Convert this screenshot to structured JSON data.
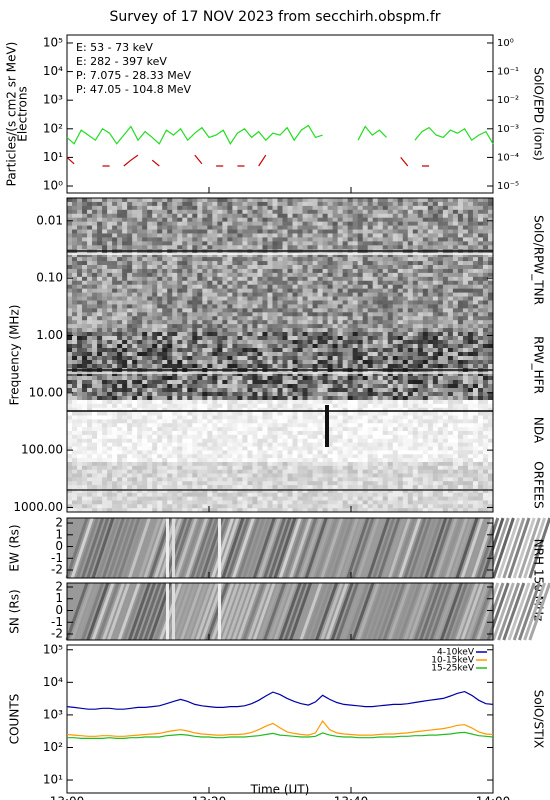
{
  "chart_data": [
    {
      "type": "line",
      "title": "Survey of 17 NOV 2023 from secchirh.obspm.fr",
      "ylabel": [
        "Particles/(s cm2 sr MeV)",
        "Electrons"
      ],
      "y2label": "SolO/EPD (ions)",
      "log_scale": true,
      "ylim": [
        0.57,
        190000
      ],
      "y2lim": [
        5.7e-06,
        1.9
      ],
      "yticks": [
        {
          "value": 1,
          "label": "10⁰"
        },
        {
          "value": 10,
          "label": "10¹"
        },
        {
          "value": 100,
          "label": "10²"
        },
        {
          "value": 1000,
          "label": "10³"
        },
        {
          "value": 10000,
          "label": "10⁴"
        },
        {
          "value": 100000,
          "label": "10⁵"
        }
      ],
      "y2ticks": [
        {
          "value": 1e-05,
          "label": "10⁻⁵"
        },
        {
          "value": 0.0001,
          "label": "10⁻⁴"
        },
        {
          "value": 0.001,
          "label": "10⁻³"
        },
        {
          "value": 0.01,
          "label": "10⁻²"
        },
        {
          "value": 0.1,
          "label": "10⁻¹"
        },
        {
          "value": 1,
          "label": "10⁰"
        }
      ],
      "xlim": [
        "13:00",
        "14:00"
      ],
      "x": [
        "13:00",
        "13:01",
        "13:02",
        "13:03",
        "13:04",
        "13:05",
        "13:06",
        "13:07",
        "13:08",
        "13:09",
        "13:10",
        "13:11",
        "13:12",
        "13:13",
        "13:14",
        "13:15",
        "13:16",
        "13:17",
        "13:18",
        "13:19",
        "13:20",
        "13:21",
        "13:22",
        "13:23",
        "13:24",
        "13:25",
        "13:26",
        "13:27",
        "13:28",
        "13:29",
        "13:30",
        "13:31",
        "13:32",
        "13:33",
        "13:34",
        "13:35",
        "13:36",
        "13:37",
        "13:38",
        "13:39",
        "13:40",
        "13:41",
        "13:42",
        "13:43",
        "13:44",
        "13:45",
        "13:46",
        "13:47",
        "13:48",
        "13:49",
        "13:50",
        "13:51",
        "13:52",
        "13:53",
        "13:54",
        "13:55",
        "13:56",
        "13:57",
        "13:58",
        "13:59",
        "14:00"
      ],
      "series": [
        {
          "name": "E: 53 - 73 keV",
          "color": "#22dd22",
          "values": [
            50,
            30,
            90,
            60,
            40,
            100,
            70,
            30,
            60,
            120,
            40,
            80,
            50,
            30,
            90,
            60,
            100,
            40,
            70,
            110,
            50,
            60,
            90,
            30,
            70,
            100,
            50,
            80,
            40,
            70,
            60,
            110,
            40,
            90,
            130,
            50,
            60,
            null,
            null,
            80,
            null,
            40,
            120,
            60,
            90,
            50,
            null,
            100,
            null,
            40,
            80,
            110,
            60,
            50,
            90,
            70,
            100,
            40,
            60,
            80,
            30
          ]
        },
        {
          "name": "E: 282 - 397 keV",
          "color": "#cc0000",
          "values": [
            10,
            6,
            null,
            null,
            null,
            5,
            5,
            null,
            5,
            8,
            12,
            null,
            8,
            5,
            null,
            null,
            null,
            null,
            12,
            6,
            null,
            5,
            5,
            null,
            5,
            5,
            null,
            5,
            12,
            null,
            null,
            null,
            null,
            null,
            null,
            null,
            null,
            null,
            null,
            null,
            null,
            null,
            null,
            null,
            null,
            null,
            null,
            10,
            5,
            null,
            5,
            5,
            null,
            null,
            null,
            null,
            null,
            null,
            null,
            null,
            null
          ]
        },
        {
          "name": "P: 7.075 - 28.33 MeV",
          "color": "#000000",
          "axis": "y2",
          "values": [
            null,
            null,
            null,
            null,
            null,
            null,
            null,
            null,
            null,
            null,
            null,
            null,
            null,
            null,
            null,
            null,
            null,
            null,
            null,
            null,
            null,
            null,
            null,
            null,
            null,
            null,
            null,
            null,
            null,
            null,
            null,
            null,
            null,
            null,
            null,
            null,
            null,
            null,
            null,
            null,
            null,
            null,
            null,
            null,
            null,
            null,
            null,
            null,
            null,
            null,
            null,
            null,
            null,
            null,
            null,
            null,
            null,
            null,
            null,
            null,
            null
          ]
        },
        {
          "name": "P: 47.05 - 104.8 MeV",
          "color": "#0000aa",
          "axis": "y2",
          "values": [
            null,
            null,
            null,
            null,
            null,
            null,
            null,
            null,
            null,
            null,
            null,
            null,
            null,
            null,
            null,
            null,
            null,
            null,
            null,
            null,
            null,
            null,
            null,
            null,
            null,
            null,
            null,
            null,
            null,
            null,
            null,
            null,
            null,
            null,
            null,
            null,
            null,
            null,
            null,
            null,
            null,
            null,
            null,
            null,
            null,
            null,
            null,
            null,
            null,
            null,
            null,
            null,
            null,
            null,
            null,
            null,
            null,
            null,
            null,
            null,
            null
          ]
        }
      ]
    },
    {
      "type": "spectrogram",
      "ylabel": "Frequency (MHz)",
      "log_scale": true,
      "reversed": true,
      "ylim": [
        0.004,
        1200
      ],
      "yticks": [
        0.01,
        {
          "value": 0.1,
          "label": "0.10"
        },
        {
          "value": 1,
          "label": "1.00"
        },
        {
          "value": 10,
          "label": "10.00"
        },
        {
          "value": 100,
          "label": "100.00"
        },
        {
          "value": 1000,
          "label": "1000.00"
        }
      ],
      "instrument_labels": [
        "SolO/RPW_TNR",
        "RPW_HFR",
        "NDA",
        "ORFEES"
      ]
    },
    {
      "type": "image",
      "ylabel": "EW (Rs)",
      "ylim": [
        -2.68,
        2.43
      ],
      "yticks": [
        -2,
        -1,
        0,
        1,
        2
      ],
      "instrument_label": "NRH 150 MHz"
    },
    {
      "type": "image",
      "ylabel": "SN (Rs)",
      "ylim": [
        -2.51,
        2.34
      ],
      "yticks": [
        -2,
        -1,
        0,
        1,
        2
      ]
    },
    {
      "type": "line",
      "ylabel": "COUNTS",
      "y2label": "SolO/STIX",
      "xlabel": "Time (UT)",
      "log_scale": true,
      "ylim": [
        4,
        140000
      ],
      "yticks": [
        {
          "value": 10,
          "label": "10¹"
        },
        {
          "value": 100,
          "label": "10²"
        },
        {
          "value": 1000,
          "label": "10³"
        },
        {
          "value": 10000,
          "label": "10⁴"
        },
        {
          "value": 100000,
          "label": "10⁵"
        }
      ],
      "xlim": [
        "13:00",
        "14:00"
      ],
      "xticks": [
        "13:00",
        "13:20",
        "13:40",
        "14:00"
      ],
      "x": [
        "13:00",
        "13:01",
        "13:02",
        "13:03",
        "13:04",
        "13:05",
        "13:06",
        "13:07",
        "13:08",
        "13:09",
        "13:10",
        "13:11",
        "13:12",
        "13:13",
        "13:14",
        "13:15",
        "13:16",
        "13:17",
        "13:18",
        "13:19",
        "13:20",
        "13:21",
        "13:22",
        "13:23",
        "13:24",
        "13:25",
        "13:26",
        "13:27",
        "13:28",
        "13:29",
        "13:30",
        "13:31",
        "13:32",
        "13:33",
        "13:34",
        "13:35",
        "13:36",
        "13:37",
        "13:38",
        "13:39",
        "13:40",
        "13:41",
        "13:42",
        "13:43",
        "13:44",
        "13:45",
        "13:46",
        "13:47",
        "13:48",
        "13:49",
        "13:50",
        "13:51",
        "13:52",
        "13:53",
        "13:54",
        "13:55",
        "13:56",
        "13:57",
        "13:58",
        "13:59",
        "14:00"
      ],
      "series": [
        {
          "name": "4-10keV",
          "color": "#0000aa",
          "values": [
            1800,
            1700,
            1600,
            1500,
            1500,
            1600,
            1600,
            1500,
            1500,
            1600,
            1700,
            1700,
            1800,
            1900,
            2200,
            2600,
            3000,
            2600,
            2100,
            1900,
            1800,
            1700,
            1700,
            1800,
            1800,
            1900,
            2200,
            2800,
            3800,
            5000,
            4200,
            3200,
            2600,
            2200,
            2000,
            2500,
            4000,
            3000,
            2400,
            2100,
            2000,
            1900,
            1800,
            1800,
            1900,
            2000,
            2100,
            2100,
            2200,
            2400,
            2600,
            2800,
            3000,
            3200,
            3800,
            4600,
            5200,
            4000,
            2800,
            2200,
            2100
          ]
        },
        {
          "name": "10-15keV",
          "color": "#ff9900",
          "values": [
            250,
            240,
            230,
            220,
            220,
            230,
            230,
            220,
            220,
            230,
            240,
            250,
            260,
            270,
            300,
            330,
            350,
            320,
            280,
            260,
            250,
            240,
            240,
            250,
            250,
            260,
            290,
            350,
            450,
            550,
            400,
            300,
            270,
            250,
            240,
            280,
            650,
            350,
            280,
            260,
            250,
            240,
            240,
            240,
            250,
            260,
            260,
            270,
            280,
            300,
            320,
            340,
            360,
            380,
            420,
            480,
            500,
            400,
            300,
            260,
            250
          ]
        },
        {
          "name": "15-25keV",
          "color": "#22bb22",
          "values": [
            200,
            200,
            190,
            190,
            190,
            190,
            200,
            190,
            190,
            200,
            200,
            210,
            210,
            210,
            230,
            240,
            250,
            240,
            220,
            210,
            210,
            200,
            200,
            210,
            210,
            210,
            220,
            230,
            250,
            270,
            240,
            230,
            220,
            210,
            210,
            220,
            280,
            240,
            220,
            210,
            210,
            200,
            200,
            200,
            210,
            210,
            210,
            220,
            220,
            230,
            230,
            240,
            240,
            250,
            260,
            280,
            290,
            260,
            230,
            220,
            210
          ]
        }
      ]
    }
  ]
}
